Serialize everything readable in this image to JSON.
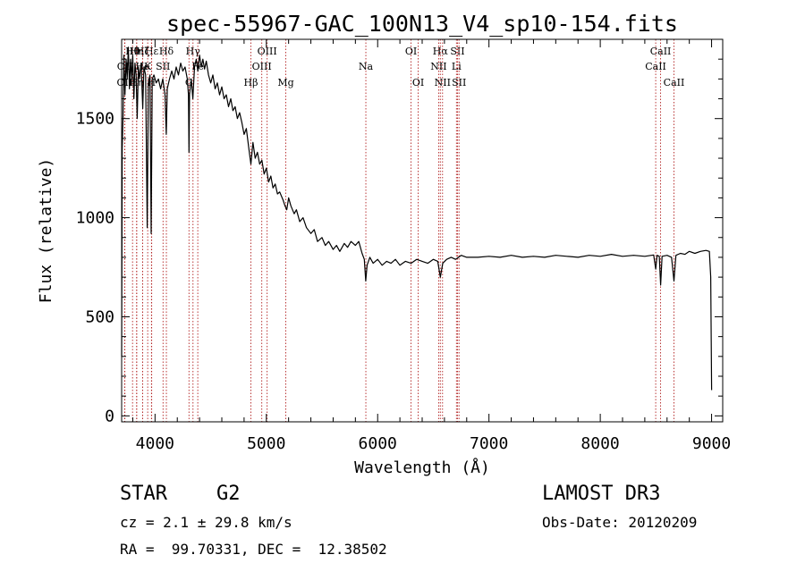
{
  "chart_data": {
    "type": "line",
    "title": "spec-55967-GAC_100N13_V4_sp10-154.fits",
    "xlabel": "Wavelength (Å)",
    "ylabel": "Flux (relative)",
    "xlim": [
      3700,
      9100
    ],
    "ylim": [
      -30,
      1900
    ],
    "xticks": [
      4000,
      5000,
      6000,
      7000,
      8000,
      9000
    ],
    "yticks": [
      0,
      500,
      1000,
      1500
    ],
    "grid": false,
    "series": [
      {
        "points": [
          [
            3700,
            300
          ],
          [
            3705,
            1350
          ],
          [
            3712,
            1500
          ],
          [
            3720,
            1820
          ],
          [
            3730,
            1620
          ],
          [
            3740,
            1800
          ],
          [
            3750,
            1700
          ],
          [
            3760,
            1860
          ],
          [
            3770,
            1650
          ],
          [
            3780,
            1800
          ],
          [
            3790,
            1700
          ],
          [
            3800,
            1820
          ],
          [
            3810,
            1600
          ],
          [
            3820,
            1780
          ],
          [
            3830,
            1720
          ],
          [
            3840,
            1500
          ],
          [
            3850,
            1760
          ],
          [
            3860,
            1700
          ],
          [
            3875,
            1780
          ],
          [
            3890,
            1550
          ],
          [
            3900,
            1760
          ],
          [
            3915,
            1720
          ],
          [
            3930,
            950
          ],
          [
            3940,
            1680
          ],
          [
            3955,
            1720
          ],
          [
            3965,
            920
          ],
          [
            3975,
            1700
          ],
          [
            3990,
            1720
          ],
          [
            4010,
            1680
          ],
          [
            4030,
            1700
          ],
          [
            4050,
            1650
          ],
          [
            4070,
            1700
          ],
          [
            4090,
            1620
          ],
          [
            4101,
            1420
          ],
          [
            4110,
            1650
          ],
          [
            4130,
            1700
          ],
          [
            4150,
            1740
          ],
          [
            4170,
            1700
          ],
          [
            4190,
            1760
          ],
          [
            4210,
            1720
          ],
          [
            4230,
            1780
          ],
          [
            4250,
            1740
          ],
          [
            4270,
            1760
          ],
          [
            4290,
            1700
          ],
          [
            4300,
            1620
          ],
          [
            4305,
            1330
          ],
          [
            4310,
            1620
          ],
          [
            4325,
            1700
          ],
          [
            4340,
            1600
          ],
          [
            4355,
            1760
          ],
          [
            4370,
            1800
          ],
          [
            4385,
            1740
          ],
          [
            4400,
            1820
          ],
          [
            4415,
            1760
          ],
          [
            4430,
            1800
          ],
          [
            4445,
            1750
          ],
          [
            4460,
            1790
          ],
          [
            4480,
            1720
          ],
          [
            4500,
            1680
          ],
          [
            4520,
            1720
          ],
          [
            4540,
            1650
          ],
          [
            4560,
            1680
          ],
          [
            4580,
            1620
          ],
          [
            4600,
            1660
          ],
          [
            4620,
            1600
          ],
          [
            4640,
            1620
          ],
          [
            4660,
            1560
          ],
          [
            4680,
            1600
          ],
          [
            4700,
            1540
          ],
          [
            4720,
            1560
          ],
          [
            4740,
            1500
          ],
          [
            4760,
            1530
          ],
          [
            4780,
            1480
          ],
          [
            4800,
            1420
          ],
          [
            4820,
            1450
          ],
          [
            4840,
            1360
          ],
          [
            4861,
            1270
          ],
          [
            4880,
            1380
          ],
          [
            4900,
            1300
          ],
          [
            4920,
            1330
          ],
          [
            4940,
            1270
          ],
          [
            4960,
            1290
          ],
          [
            4980,
            1220
          ],
          [
            5000,
            1250
          ],
          [
            5020,
            1180
          ],
          [
            5040,
            1210
          ],
          [
            5060,
            1150
          ],
          [
            5080,
            1170
          ],
          [
            5100,
            1120
          ],
          [
            5120,
            1130
          ],
          [
            5150,
            1090
          ],
          [
            5167,
            1060
          ],
          [
            5183,
            1040
          ],
          [
            5200,
            1100
          ],
          [
            5220,
            1060
          ],
          [
            5250,
            1020
          ],
          [
            5270,
            1040
          ],
          [
            5300,
            980
          ],
          [
            5330,
            1000
          ],
          [
            5360,
            950
          ],
          [
            5400,
            920
          ],
          [
            5430,
            940
          ],
          [
            5460,
            880
          ],
          [
            5500,
            900
          ],
          [
            5530,
            860
          ],
          [
            5560,
            880
          ],
          [
            5600,
            840
          ],
          [
            5630,
            860
          ],
          [
            5660,
            830
          ],
          [
            5700,
            870
          ],
          [
            5730,
            850
          ],
          [
            5760,
            880
          ],
          [
            5800,
            860
          ],
          [
            5830,
            880
          ],
          [
            5860,
            820
          ],
          [
            5880,
            790
          ],
          [
            5893,
            680
          ],
          [
            5905,
            760
          ],
          [
            5930,
            800
          ],
          [
            5960,
            770
          ],
          [
            6000,
            790
          ],
          [
            6040,
            760
          ],
          [
            6080,
            780
          ],
          [
            6120,
            770
          ],
          [
            6160,
            790
          ],
          [
            6200,
            760
          ],
          [
            6250,
            780
          ],
          [
            6300,
            770
          ],
          [
            6350,
            790
          ],
          [
            6400,
            780
          ],
          [
            6450,
            770
          ],
          [
            6500,
            790
          ],
          [
            6540,
            780
          ],
          [
            6563,
            700
          ],
          [
            6585,
            770
          ],
          [
            6620,
            790
          ],
          [
            6660,
            800
          ],
          [
            6700,
            790
          ],
          [
            6750,
            810
          ],
          [
            6800,
            800
          ],
          [
            6900,
            800
          ],
          [
            7000,
            805
          ],
          [
            7100,
            800
          ],
          [
            7200,
            810
          ],
          [
            7300,
            800
          ],
          [
            7400,
            805
          ],
          [
            7500,
            800
          ],
          [
            7600,
            810
          ],
          [
            7700,
            805
          ],
          [
            7800,
            800
          ],
          [
            7900,
            810
          ],
          [
            8000,
            805
          ],
          [
            8100,
            815
          ],
          [
            8200,
            805
          ],
          [
            8300,
            810
          ],
          [
            8400,
            805
          ],
          [
            8480,
            812
          ],
          [
            8498,
            740
          ],
          [
            8510,
            810
          ],
          [
            8530,
            805
          ],
          [
            8542,
            660
          ],
          [
            8555,
            805
          ],
          [
            8600,
            810
          ],
          [
            8640,
            800
          ],
          [
            8662,
            680
          ],
          [
            8680,
            810
          ],
          [
            8720,
            820
          ],
          [
            8760,
            815
          ],
          [
            8800,
            830
          ],
          [
            8850,
            820
          ],
          [
            8900,
            830
          ],
          [
            8950,
            835
          ],
          [
            8980,
            830
          ],
          [
            8992,
            700
          ],
          [
            9000,
            130
          ]
        ]
      }
    ],
    "lines": [
      {
        "label": "OII",
        "wave": 3727,
        "row": 2
      },
      {
        "label": "OII",
        "wave": 3729,
        "row": 1
      },
      {
        "label": "Hθ",
        "wave": 3798,
        "row": 0
      },
      {
        "label": "Hη",
        "wave": 3835,
        "row": 0
      },
      {
        "label": "Hη",
        "wave": 3835,
        "row": 2
      },
      {
        "label": "Hζ",
        "wave": 3889,
        "row": 0
      },
      {
        "label": "He",
        "wave": 3889,
        "row": 1
      },
      {
        "label": "Hε",
        "wave": 3970,
        "row": 0
      },
      {
        "label": "K",
        "wave": 3934,
        "row": 1
      },
      {
        "label": "H",
        "wave": 3968,
        "row": 2
      },
      {
        "label": "Hδ",
        "wave": 4102,
        "row": 0
      },
      {
        "label": "SII",
        "wave": 4072,
        "row": 1
      },
      {
        "label": "G",
        "wave": 4305,
        "row": 2
      },
      {
        "label": "Hγ",
        "wave": 4341,
        "row": 0
      },
      {
        "label": "Fe",
        "wave": 4384,
        "row": 1
      },
      {
        "label": "Hβ",
        "wave": 4861,
        "row": 2
      },
      {
        "label": "OIII",
        "wave": 5007,
        "row": 0
      },
      {
        "label": "OIII",
        "wave": 4959,
        "row": 1
      },
      {
        "label": "Mg",
        "wave": 5175,
        "row": 2
      },
      {
        "label": "Na",
        "wave": 5894,
        "row": 1
      },
      {
        "label": "OI",
        "wave": 6300,
        "row": 0
      },
      {
        "label": "OI",
        "wave": 6364,
        "row": 2
      },
      {
        "label": "Hα",
        "wave": 6563,
        "row": 0
      },
      {
        "label": "NII",
        "wave": 6548,
        "row": 1
      },
      {
        "label": "NII",
        "wave": 6583,
        "row": 2
      },
      {
        "label": "SII",
        "wave": 6717,
        "row": 0
      },
      {
        "label": "Li",
        "wave": 6708,
        "row": 1
      },
      {
        "label": "SII",
        "wave": 6731,
        "row": 2
      },
      {
        "label": "CaII",
        "wave": 8542,
        "row": 0
      },
      {
        "label": "CaII",
        "wave": 8498,
        "row": 1
      },
      {
        "label": "CaII",
        "wave": 8662,
        "row": 2
      }
    ]
  },
  "info": {
    "class_label": "STAR",
    "subclass": "G2",
    "survey": "LAMOST DR3",
    "cz": "cz = 2.1 ± 29.8 km/s",
    "obs_date": "Obs-Date: 20120209",
    "coords": "RA =  99.70331, DEC =  12.38502"
  },
  "colors": {
    "spectrum": "#000000",
    "line_markers": "#b22222",
    "axes": "#000000"
  }
}
